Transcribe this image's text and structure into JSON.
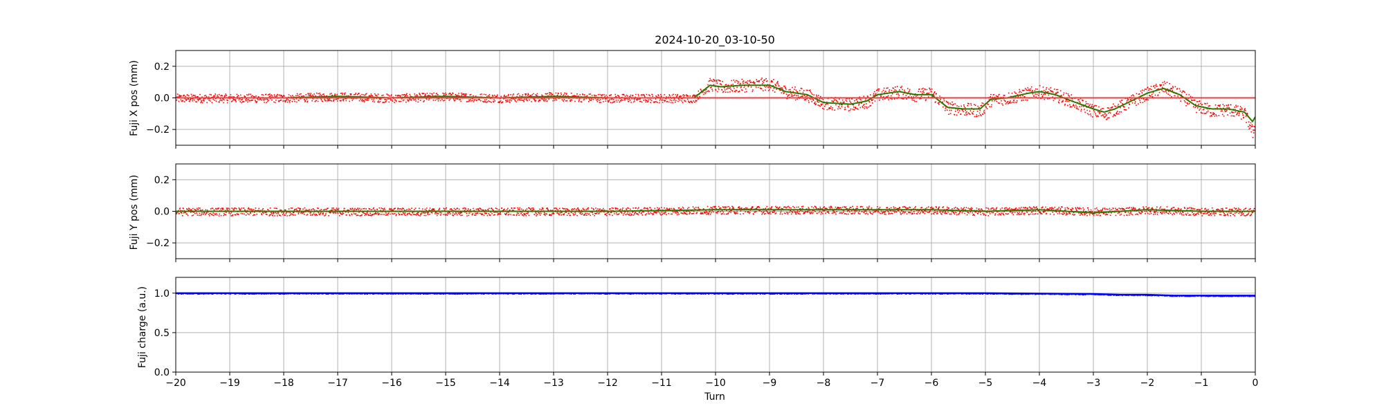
{
  "chart_data": [
    {
      "type": "scatter",
      "title": "2024-10-20_03-10-50",
      "xlabel": "",
      "ylabel": "Fuji X pos (mm)",
      "xlim": [
        -20,
        0
      ],
      "ylim": [
        -0.3,
        0.3
      ],
      "yticks": [
        "0.2",
        "0.0",
        "−0.2"
      ],
      "ytick_values": [
        0.2,
        0.0,
        -0.2
      ],
      "grid": true,
      "reference_line": {
        "y": 0.0,
        "color": "#e84040"
      },
      "series": [
        {
          "color": "#ff0000",
          "style": "points",
          "x": [
            -20,
            -19,
            -18,
            -17,
            -16,
            -15,
            -14,
            -13,
            -12,
            -11,
            -10.4,
            -10.1,
            -9.9,
            -9.5,
            -9.0,
            -8.7,
            -8.3,
            -8.0,
            -7.5,
            -7.2,
            -7.0,
            -6.6,
            -6.3,
            -6.0,
            -5.7,
            -5.4,
            -5.1,
            -4.9,
            -4.6,
            -4.2,
            -4.0,
            -3.7,
            -3.4,
            -3.0,
            -2.8,
            -2.6,
            -2.3,
            -2.0,
            -1.7,
            -1.4,
            -1.1,
            -0.8,
            -0.5,
            -0.2,
            -0.05,
            0
          ],
          "values": [
            0.0,
            0.0,
            0.0,
            0.01,
            0.0,
            0.01,
            0.0,
            0.01,
            0.0,
            0.0,
            0.0,
            0.09,
            0.07,
            0.08,
            0.09,
            0.04,
            0.02,
            -0.03,
            -0.04,
            -0.02,
            0.02,
            0.04,
            0.02,
            0.03,
            -0.06,
            -0.07,
            -0.08,
            -0.01,
            0.0,
            0.03,
            0.04,
            0.02,
            -0.02,
            -0.08,
            -0.1,
            -0.07,
            -0.02,
            0.03,
            0.07,
            0.02,
            -0.05,
            -0.08,
            -0.07,
            -0.1,
            -0.22,
            -0.12
          ]
        },
        {
          "color": "#2a7a00",
          "style": "line",
          "x": [
            -20,
            -19,
            -18,
            -17,
            -16,
            -15,
            -14,
            -13,
            -12,
            -11,
            -10.4,
            -10.1,
            -9.9,
            -9.5,
            -9.0,
            -8.7,
            -8.3,
            -8.0,
            -7.5,
            -7.2,
            -7.0,
            -6.6,
            -6.3,
            -6.0,
            -5.7,
            -5.4,
            -5.1,
            -4.9,
            -4.6,
            -4.2,
            -4.0,
            -3.7,
            -3.4,
            -3.0,
            -2.8,
            -2.6,
            -2.3,
            -2.0,
            -1.7,
            -1.4,
            -1.1,
            -0.8,
            -0.5,
            -0.2,
            -0.05,
            0
          ],
          "values": [
            0.0,
            0.0,
            0.0,
            0.01,
            0.0,
            0.01,
            0.0,
            0.01,
            0.0,
            0.0,
            0.0,
            0.08,
            0.07,
            0.08,
            0.08,
            0.04,
            0.02,
            -0.03,
            -0.04,
            -0.02,
            0.02,
            0.04,
            0.02,
            0.02,
            -0.06,
            -0.07,
            -0.07,
            -0.01,
            0.0,
            0.03,
            0.04,
            0.02,
            -0.02,
            -0.07,
            -0.09,
            -0.07,
            -0.02,
            0.03,
            0.06,
            0.02,
            -0.05,
            -0.07,
            -0.07,
            -0.09,
            -0.15,
            -0.12
          ]
        }
      ]
    },
    {
      "type": "scatter",
      "title": "",
      "xlabel": "",
      "ylabel": "Fuji Y pos (mm)",
      "xlim": [
        -20,
        0
      ],
      "ylim": [
        -0.3,
        0.3
      ],
      "yticks": [
        "0.2",
        "0.0",
        "−0.2"
      ],
      "ytick_values": [
        0.2,
        0.0,
        -0.2
      ],
      "grid": true,
      "series": [
        {
          "color": "#ff0000",
          "style": "points",
          "x": [
            -20,
            -18,
            -16,
            -14,
            -12,
            -10,
            -9,
            -8,
            -7,
            -6,
            -5,
            -4,
            -3,
            -2.5,
            -2,
            -1,
            0
          ],
          "values": [
            0.0,
            0.0,
            0.0,
            0.0,
            0.0,
            0.01,
            0.01,
            0.01,
            0.01,
            0.01,
            0.0,
            0.01,
            0.0,
            0.0,
            0.01,
            0.0,
            0.0
          ]
        },
        {
          "color": "#2a7a00",
          "style": "line",
          "x": [
            -20,
            -18,
            -16,
            -14,
            -12,
            -10,
            -9,
            -8,
            -7,
            -6,
            -5,
            -4,
            -3,
            -2.5,
            -2,
            -1,
            0
          ],
          "values": [
            0.0,
            0.0,
            0.0,
            0.0,
            0.0,
            0.01,
            0.01,
            0.01,
            0.01,
            0.01,
            0.0,
            0.01,
            -0.01,
            0.0,
            0.01,
            0.0,
            0.0
          ]
        }
      ]
    },
    {
      "type": "scatter",
      "title": "",
      "xlabel": "Turn",
      "ylabel": "Fuji charge (a.u.)",
      "xlim": [
        -20,
        0
      ],
      "ylim": [
        0.0,
        1.2
      ],
      "yticks": [
        "1.0",
        "0.5",
        "0.0"
      ],
      "ytick_values": [
        1.0,
        0.5,
        0.0
      ],
      "xticks": [
        "−20",
        "−19",
        "−18",
        "−17",
        "−16",
        "−15",
        "−14",
        "−13",
        "−12",
        "−11",
        "−10",
        "−9",
        "−8",
        "−7",
        "−6",
        "−5",
        "−4",
        "−3",
        "−2",
        "−1",
        "0"
      ],
      "xtick_values": [
        -20,
        -19,
        -18,
        -17,
        -16,
        -15,
        -14,
        -13,
        -12,
        -11,
        -10,
        -9,
        -8,
        -7,
        -6,
        -5,
        -4,
        -3,
        -2,
        -1,
        0
      ],
      "grid": true,
      "series": [
        {
          "color": "#0000ff",
          "style": "points",
          "x": [
            -20,
            -15,
            -10,
            -5,
            -3,
            -2.5,
            -2,
            -1.5,
            -1,
            -0.5,
            0
          ],
          "values": [
            1.0,
            1.0,
            1.0,
            1.0,
            0.99,
            0.98,
            0.98,
            0.97,
            0.97,
            0.97,
            0.97
          ]
        }
      ]
    }
  ]
}
